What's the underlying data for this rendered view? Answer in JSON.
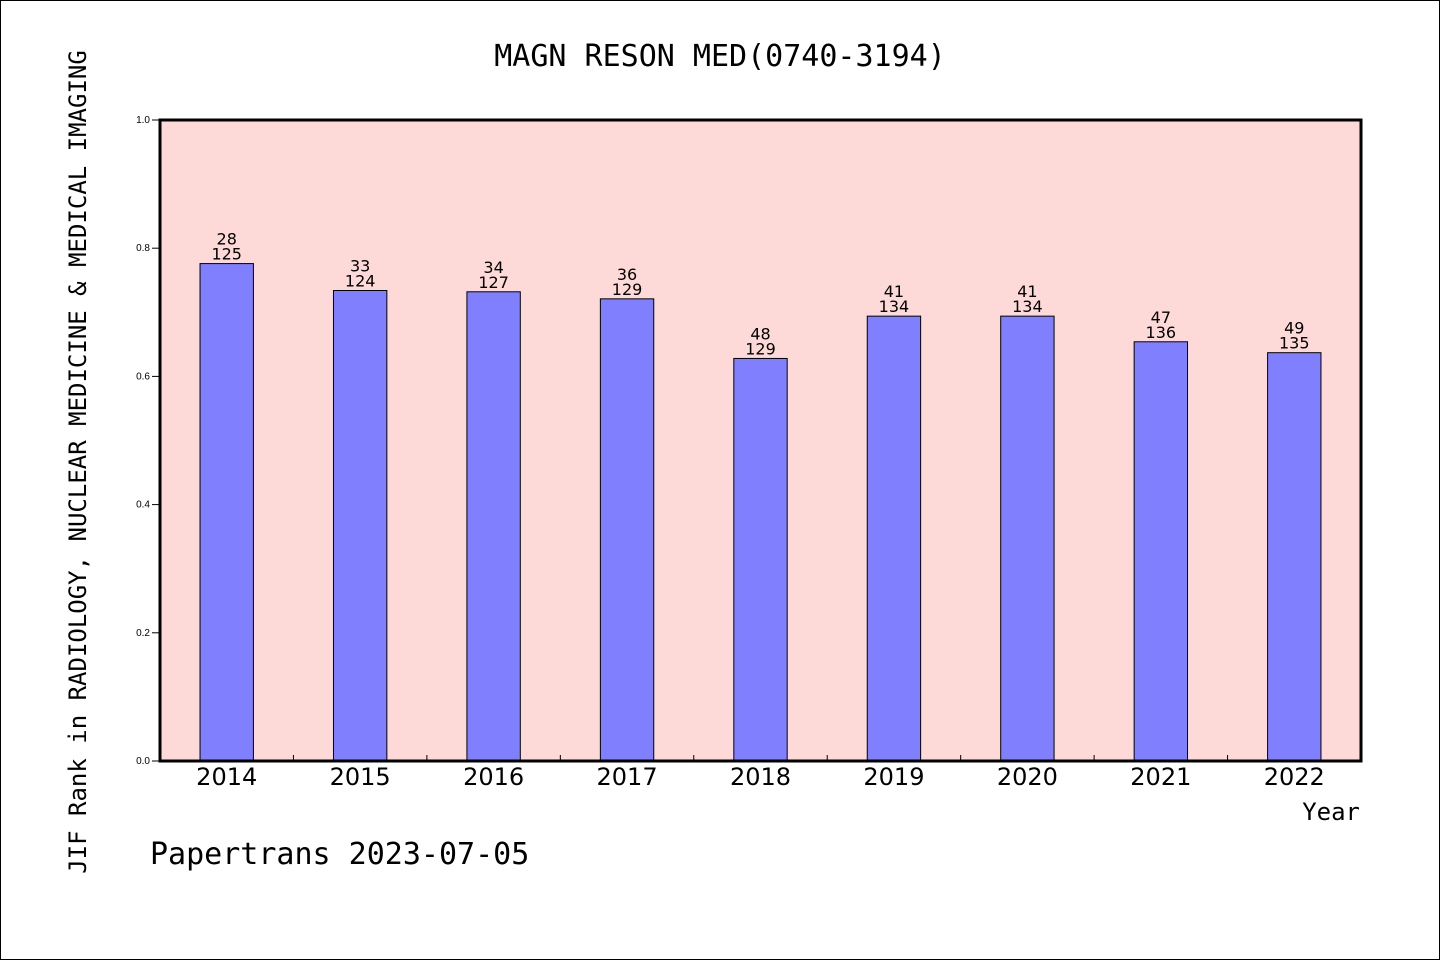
{
  "chart_data": {
    "type": "bar",
    "title": "MAGN RESON MED(0740-3194)",
    "ylabel": "JIF Rank in RADIOLOGY, NUCLEAR MEDICINE & MEDICAL IMAGING",
    "xlabel": "Year",
    "ylim": [
      0,
      1.0
    ],
    "yticks": [
      "0.0",
      "0.2",
      "0.4",
      "0.6",
      "0.8",
      "1.0"
    ],
    "grid": false,
    "categories": [
      "2014",
      "2015",
      "2016",
      "2017",
      "2018",
      "2019",
      "2020",
      "2021",
      "2022"
    ],
    "values": [
      0.776,
      0.734,
      0.732,
      0.721,
      0.628,
      0.694,
      0.694,
      0.654,
      0.637
    ],
    "rank": [
      "28",
      "33",
      "34",
      "36",
      "48",
      "41",
      "41",
      "47",
      "49"
    ],
    "total": [
      "125",
      "124",
      "127",
      "129",
      "129",
      "134",
      "134",
      "136",
      "135"
    ],
    "colors": {
      "plot_bg": "#FDDAD8",
      "bar": "#8080FF",
      "axis": "#000000"
    }
  },
  "footer": "Papertrans 2023-07-05"
}
